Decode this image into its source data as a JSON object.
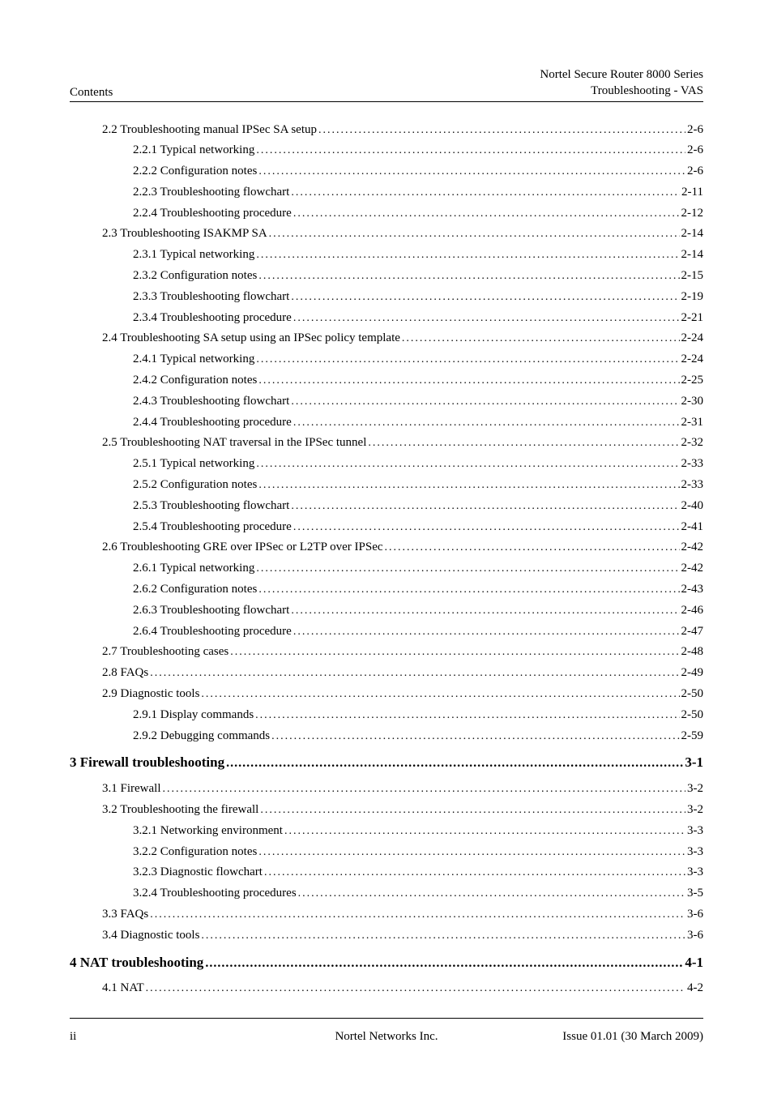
{
  "header": {
    "left": "Contents",
    "right_line1": "Nortel Secure Router 8000 Series",
    "right_line2": "Troubleshooting - VAS"
  },
  "toc": [
    {
      "level": 1,
      "title": "2.2 Troubleshooting manual IPSec SA setup",
      "page": "2-6"
    },
    {
      "level": 2,
      "title": "2.2.1 Typical networking",
      "page": "2-6"
    },
    {
      "level": 2,
      "title": "2.2.2 Configuration notes",
      "page": "2-6"
    },
    {
      "level": 2,
      "title": "2.2.3 Troubleshooting flowchart",
      "page": "2-11"
    },
    {
      "level": 2,
      "title": "2.2.4 Troubleshooting procedure",
      "page": "2-12"
    },
    {
      "level": 1,
      "title": "2.3 Troubleshooting ISAKMP SA",
      "page": "2-14"
    },
    {
      "level": 2,
      "title": "2.3.1 Typical networking",
      "page": "2-14"
    },
    {
      "level": 2,
      "title": "2.3.2 Configuration notes",
      "page": "2-15"
    },
    {
      "level": 2,
      "title": "2.3.3 Troubleshooting flowchart",
      "page": "2-19"
    },
    {
      "level": 2,
      "title": "2.3.4 Troubleshooting procedure",
      "page": "2-21"
    },
    {
      "level": 1,
      "title": "2.4 Troubleshooting SA setup using an IPSec policy template",
      "page": "2-24"
    },
    {
      "level": 2,
      "title": "2.4.1 Typical networking",
      "page": "2-24"
    },
    {
      "level": 2,
      "title": "2.4.2 Configuration notes",
      "page": "2-25"
    },
    {
      "level": 2,
      "title": "2.4.3 Troubleshooting flowchart",
      "page": "2-30"
    },
    {
      "level": 2,
      "title": "2.4.4 Troubleshooting procedure",
      "page": "2-31"
    },
    {
      "level": 1,
      "title": "2.5 Troubleshooting NAT traversal in the IPSec tunnel",
      "page": "2-32"
    },
    {
      "level": 2,
      "title": "2.5.1 Typical networking",
      "page": "2-33"
    },
    {
      "level": 2,
      "title": "2.5.2 Configuration notes",
      "page": "2-33"
    },
    {
      "level": 2,
      "title": "2.5.3 Troubleshooting flowchart",
      "page": "2-40"
    },
    {
      "level": 2,
      "title": "2.5.4 Troubleshooting procedure",
      "page": "2-41"
    },
    {
      "level": 1,
      "title": "2.6 Troubleshooting GRE over IPSec or L2TP over IPSec",
      "page": "2-42"
    },
    {
      "level": 2,
      "title": "2.6.1 Typical networking",
      "page": "2-42"
    },
    {
      "level": 2,
      "title": "2.6.2 Configuration notes",
      "page": "2-43"
    },
    {
      "level": 2,
      "title": "2.6.3 Troubleshooting flowchart",
      "page": "2-46"
    },
    {
      "level": 2,
      "title": "2.6.4 Troubleshooting procedure",
      "page": "2-47"
    },
    {
      "level": 1,
      "title": "2.7 Troubleshooting cases",
      "page": "2-48"
    },
    {
      "level": 1,
      "title": "2.8 FAQs",
      "page": "2-49"
    },
    {
      "level": 1,
      "title": "2.9 Diagnostic tools",
      "page": "2-50"
    },
    {
      "level": 2,
      "title": "2.9.1 Display commands",
      "page": "2-50"
    },
    {
      "level": 2,
      "title": "2.9.2 Debugging commands",
      "page": "2-59"
    },
    {
      "level": 0,
      "title": "3 Firewall troubleshooting",
      "page": "3-1"
    },
    {
      "level": 1,
      "title": "3.1 Firewall",
      "page": "3-2"
    },
    {
      "level": 1,
      "title": "3.2 Troubleshooting the firewall",
      "page": "3-2"
    },
    {
      "level": 2,
      "title": "3.2.1 Networking environment",
      "page": "3-3"
    },
    {
      "level": 2,
      "title": "3.2.2 Configuration notes",
      "page": "3-3"
    },
    {
      "level": 2,
      "title": "3.2.3 Diagnostic flowchart",
      "page": "3-3"
    },
    {
      "level": 2,
      "title": "3.2.4 Troubleshooting procedures",
      "page": "3-5"
    },
    {
      "level": 1,
      "title": "3.3 FAQs",
      "page": "3-6"
    },
    {
      "level": 1,
      "title": "3.4 Diagnostic tools",
      "page": "3-6"
    },
    {
      "level": 0,
      "title": "4 NAT troubleshooting",
      "page": "4-1"
    },
    {
      "level": 1,
      "title": "4.1 NAT",
      "page": "4-2"
    }
  ],
  "footer": {
    "left": "ii",
    "center": "Nortel Networks Inc.",
    "right": "Issue  01.01  (30  March  2009)"
  }
}
